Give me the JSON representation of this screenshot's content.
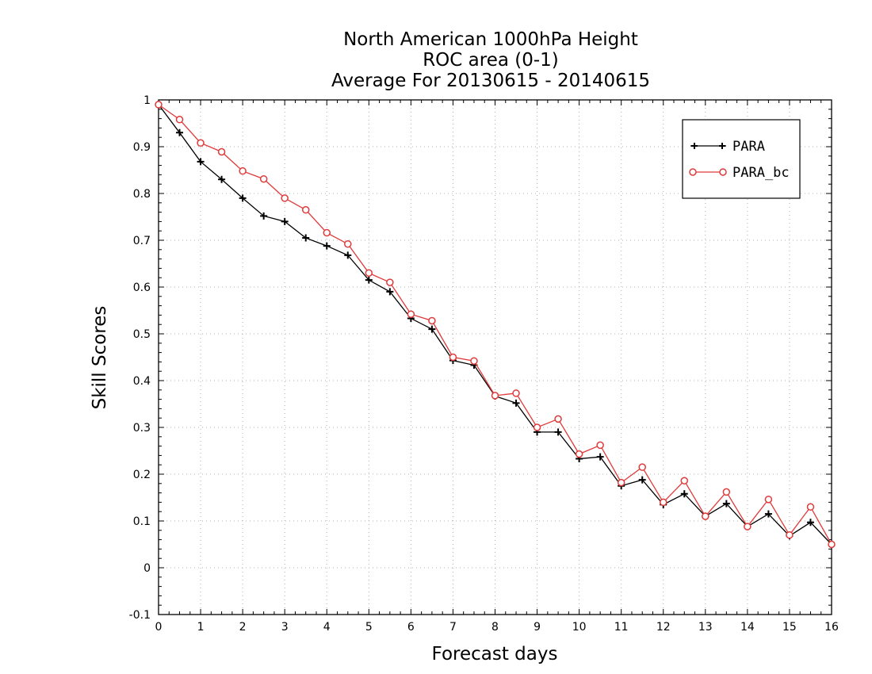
{
  "chart_data": {
    "type": "line",
    "title_lines": [
      "North American 1000hPa Height",
      "ROC area (0-1)",
      "Average For 20130615 - 20140615"
    ],
    "xlabel": "Forecast days",
    "ylabel": "Skill Scores",
    "xlim": [
      0,
      16
    ],
    "ylim": [
      -0.1,
      1
    ],
    "xticks": [
      "0",
      "1",
      "2",
      "3",
      "4",
      "5",
      "6",
      "7",
      "8",
      "9",
      "10",
      "11",
      "12",
      "13",
      "14",
      "15",
      "16"
    ],
    "yticks": [
      "-0.1",
      "0",
      "0.1",
      "0.2",
      "0.3",
      "0.4",
      "0.5",
      "0.6",
      "0.7",
      "0.8",
      "0.9",
      "1"
    ],
    "grid": true,
    "legend_position": "top-right",
    "x": [
      0,
      0.5,
      1,
      1.5,
      2,
      2.5,
      3,
      3.5,
      4,
      4.5,
      5,
      5.5,
      6,
      6.5,
      7,
      7.5,
      8,
      8.5,
      9,
      9.5,
      10,
      10.5,
      11,
      11.5,
      12,
      12.5,
      13,
      13.5,
      14,
      14.5,
      15,
      15.5,
      16
    ],
    "series": [
      {
        "name": "PARA",
        "color": "#000000",
        "marker": "plus",
        "values": [
          0.99,
          0.93,
          0.868,
          0.83,
          0.79,
          0.752,
          0.74,
          0.705,
          0.688,
          0.668,
          0.615,
          0.59,
          0.533,
          0.51,
          0.443,
          0.433,
          0.367,
          0.352,
          0.29,
          0.29,
          0.233,
          0.237,
          0.175,
          0.188,
          0.135,
          0.158,
          0.11,
          0.137,
          0.088,
          0.115,
          0.068,
          0.097,
          0.05
        ]
      },
      {
        "name": "PARA_bc",
        "color": "#e03a3a",
        "marker": "circle",
        "values": [
          0.99,
          0.958,
          0.908,
          0.889,
          0.848,
          0.831,
          0.79,
          0.765,
          0.716,
          0.692,
          0.63,
          0.61,
          0.542,
          0.528,
          0.45,
          0.442,
          0.368,
          0.373,
          0.3,
          0.318,
          0.243,
          0.262,
          0.182,
          0.215,
          0.14,
          0.186,
          0.11,
          0.162,
          0.088,
          0.146,
          0.07,
          0.13,
          0.05
        ]
      }
    ]
  }
}
